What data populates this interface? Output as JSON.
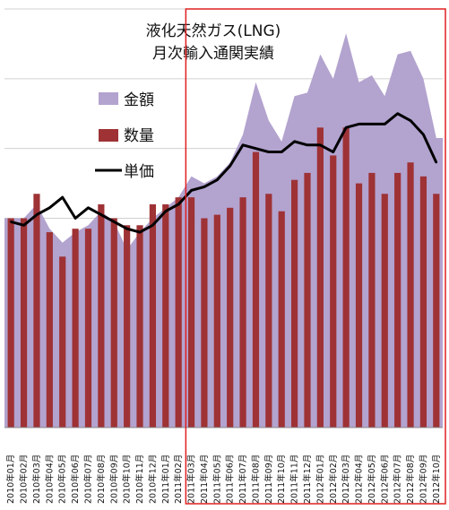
{
  "chart_data": {
    "type": "bar",
    "title": "液化天然ガス(LNG)",
    "subtitle": "月次輸入通関実績",
    "categories": [
      "2010年01月",
      "2010年02月",
      "2010年03月",
      "2010年04月",
      "2010年05月",
      "2010年06月",
      "2010年07月",
      "2010年08月",
      "2010年09月",
      "2010年10月",
      "2010年11月",
      "2010年12月",
      "2011年01月",
      "2011年02月",
      "2011年03月",
      "2011年04月",
      "2011年05月",
      "2011年06月",
      "2011年07月",
      "2011年08月",
      "2011年09月",
      "2011年10月",
      "2011年11月",
      "2011年12月",
      "2012年01月",
      "2012年02月",
      "2012年03月",
      "2012年04月",
      "2012年05月",
      "2012年06月",
      "2012年07月",
      "2012年08月",
      "2012年09月",
      "2012年10月"
    ],
    "series": [
      {
        "name": "金額",
        "kind": "area",
        "color": "#b3a3cf",
        "values": [
          0.6,
          0.6,
          0.64,
          0.57,
          0.53,
          0.56,
          0.58,
          0.62,
          0.59,
          0.51,
          0.56,
          0.6,
          0.63,
          0.66,
          0.72,
          0.7,
          0.72,
          0.76,
          0.84,
          0.99,
          0.88,
          0.82,
          0.95,
          0.96,
          1.07,
          1.0,
          1.13,
          0.99,
          1.01,
          0.95,
          1.07,
          1.08,
          1.0,
          0.83
        ]
      },
      {
        "name": "数量",
        "kind": "bar",
        "color": "#9e3235",
        "values": [
          0.6,
          0.6,
          0.67,
          0.56,
          0.49,
          0.57,
          0.57,
          0.64,
          0.6,
          0.58,
          0.58,
          0.64,
          0.64,
          0.66,
          0.66,
          0.6,
          0.61,
          0.63,
          0.66,
          0.79,
          0.67,
          0.62,
          0.71,
          0.73,
          0.86,
          0.78,
          0.86,
          0.7,
          0.73,
          0.67,
          0.73,
          0.76,
          0.72,
          0.67
        ]
      },
      {
        "name": "単価",
        "kind": "line",
        "color": "#000000",
        "values": [
          0.59,
          0.58,
          0.61,
          0.63,
          0.66,
          0.6,
          0.63,
          0.61,
          0.59,
          0.57,
          0.56,
          0.58,
          0.62,
          0.64,
          0.68,
          0.69,
          0.71,
          0.75,
          0.81,
          0.8,
          0.79,
          0.79,
          0.82,
          0.81,
          0.81,
          0.79,
          0.86,
          0.87,
          0.87,
          0.87,
          0.9,
          0.88,
          0.84,
          0.76
        ]
      }
    ],
    "ylim": [
      0,
      1.2
    ],
    "grid": true,
    "legend_position": "top-left",
    "highlight": {
      "from_category": "2011年03月",
      "to_category": "2012年10月",
      "color": "#e02020"
    }
  }
}
